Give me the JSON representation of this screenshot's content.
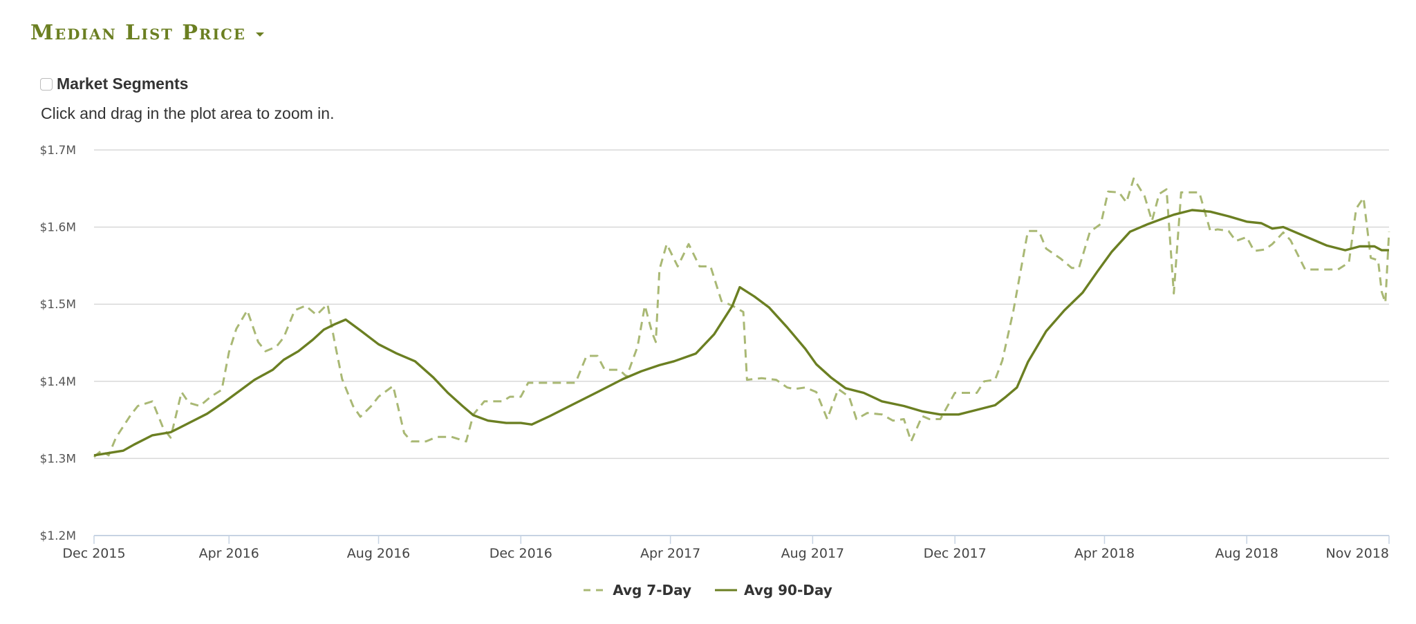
{
  "header": {
    "title": "Median List Price",
    "dropdown_icon": "caret-down-icon"
  },
  "controls": {
    "market_segments_label": "Market Segments",
    "market_segments_checked": false,
    "hint": "Click and drag in the plot area to zoom in."
  },
  "colors": {
    "accent": "#6b7f22",
    "series_7day": "#a9b874",
    "series_90day": "#6b7f22",
    "grid": "#d8d8d8",
    "axis": "#c6d3e3"
  },
  "legend": [
    {
      "label": "Avg 7-Day",
      "style": "dashed"
    },
    {
      "label": "Avg 90-Day",
      "style": "solid"
    }
  ],
  "chart_data": {
    "type": "line",
    "title": "Median List Price",
    "xlabel": "",
    "ylabel": "",
    "ylim": [
      1.2,
      1.7
    ],
    "y_ticks": [
      "$1.2M",
      "$1.3M",
      "$1.4M",
      "$1.5M",
      "$1.6M",
      "$1.7M"
    ],
    "y_tick_values": [
      1.2,
      1.3,
      1.4,
      1.5,
      1.6,
      1.7
    ],
    "x_ticks": [
      {
        "label": "Dec 2015",
        "month": 0
      },
      {
        "label": "Apr 2016",
        "month": 3.7
      },
      {
        "label": "Aug 2016",
        "month": 7.8
      },
      {
        "label": "Dec 2016",
        "month": 11.7
      },
      {
        "label": "Apr 2017",
        "month": 15.8
      },
      {
        "label": "Aug 2017",
        "month": 19.7
      },
      {
        "label": "Dec 2017",
        "month": 23.6
      },
      {
        "label": "Apr 2018",
        "month": 27.7
      },
      {
        "label": "Aug 2018",
        "month": 31.6
      },
      {
        "label": "Nov 2018",
        "month": 35.5
      }
    ],
    "xlim": [
      0,
      35.5
    ],
    "grid": true,
    "legend_position": "bottom",
    "series": [
      {
        "name": "Avg 7-Day",
        "dash": true,
        "points": [
          [
            0,
            1.302
          ],
          [
            0.2,
            1.31
          ],
          [
            0.4,
            1.304
          ],
          [
            0.6,
            1.327
          ],
          [
            1.0,
            1.356
          ],
          [
            1.2,
            1.368
          ],
          [
            1.6,
            1.374
          ],
          [
            1.9,
            1.339
          ],
          [
            2.1,
            1.327
          ],
          [
            2.4,
            1.386
          ],
          [
            2.6,
            1.372
          ],
          [
            2.9,
            1.368
          ],
          [
            3.2,
            1.38
          ],
          [
            3.5,
            1.389
          ],
          [
            3.7,
            1.438
          ],
          [
            3.9,
            1.468
          ],
          [
            4.2,
            1.492
          ],
          [
            4.5,
            1.451
          ],
          [
            4.7,
            1.439
          ],
          [
            5.0,
            1.445
          ],
          [
            5.2,
            1.457
          ],
          [
            5.5,
            1.492
          ],
          [
            5.8,
            1.498
          ],
          [
            6.1,
            1.486
          ],
          [
            6.4,
            1.5
          ],
          [
            6.6,
            1.45
          ],
          [
            6.8,
            1.403
          ],
          [
            7.1,
            1.368
          ],
          [
            7.3,
            1.354
          ],
          [
            7.6,
            1.368
          ],
          [
            7.8,
            1.38
          ],
          [
            8.2,
            1.394
          ],
          [
            8.5,
            1.333
          ],
          [
            8.7,
            1.322
          ],
          [
            9.1,
            1.322
          ],
          [
            9.4,
            1.328
          ],
          [
            9.8,
            1.328
          ],
          [
            10.2,
            1.322
          ],
          [
            10.4,
            1.357
          ],
          [
            10.7,
            1.374
          ],
          [
            11.2,
            1.374
          ],
          [
            11.4,
            1.38
          ],
          [
            11.7,
            1.38
          ],
          [
            11.9,
            1.398
          ],
          [
            12.2,
            1.398
          ],
          [
            12.5,
            1.398
          ],
          [
            12.9,
            1.398
          ],
          [
            13.2,
            1.398
          ],
          [
            13.5,
            1.433
          ],
          [
            13.8,
            1.433
          ],
          [
            14.0,
            1.415
          ],
          [
            14.4,
            1.415
          ],
          [
            14.6,
            1.406
          ],
          [
            14.9,
            1.445
          ],
          [
            15.1,
            1.498
          ],
          [
            15.3,
            1.463
          ],
          [
            15.4,
            1.451
          ],
          [
            15.5,
            1.545
          ],
          [
            15.7,
            1.578
          ],
          [
            16.0,
            1.549
          ],
          [
            16.3,
            1.578
          ],
          [
            16.6,
            1.549
          ],
          [
            16.9,
            1.549
          ],
          [
            17.2,
            1.504
          ],
          [
            17.5,
            1.498
          ],
          [
            17.8,
            1.49
          ],
          [
            17.9,
            1.402
          ],
          [
            18.3,
            1.404
          ],
          [
            18.7,
            1.402
          ],
          [
            19.0,
            1.392
          ],
          [
            19.2,
            1.39
          ],
          [
            19.5,
            1.392
          ],
          [
            19.8,
            1.386
          ],
          [
            20.1,
            1.351
          ],
          [
            20.4,
            1.39
          ],
          [
            20.7,
            1.38
          ],
          [
            20.9,
            1.351
          ],
          [
            21.2,
            1.359
          ],
          [
            21.6,
            1.357
          ],
          [
            21.9,
            1.349
          ],
          [
            22.2,
            1.351
          ],
          [
            22.4,
            1.322
          ],
          [
            22.7,
            1.355
          ],
          [
            22.9,
            1.351
          ],
          [
            23.2,
            1.351
          ],
          [
            23.6,
            1.385
          ],
          [
            23.8,
            1.385
          ],
          [
            24.2,
            1.385
          ],
          [
            24.4,
            1.4
          ],
          [
            24.7,
            1.402
          ],
          [
            24.9,
            1.427
          ],
          [
            25.2,
            1.491
          ],
          [
            25.6,
            1.595
          ],
          [
            25.9,
            1.595
          ],
          [
            26.1,
            1.572
          ],
          [
            26.5,
            1.559
          ],
          [
            26.8,
            1.547
          ],
          [
            27.0,
            1.547
          ],
          [
            27.3,
            1.594
          ],
          [
            27.6,
            1.604
          ],
          [
            27.8,
            1.646
          ],
          [
            28.1,
            1.645
          ],
          [
            28.3,
            1.632
          ],
          [
            28.5,
            1.663
          ],
          [
            28.8,
            1.64
          ],
          [
            29.0,
            1.608
          ],
          [
            29.2,
            1.643
          ],
          [
            29.4,
            1.649
          ],
          [
            29.6,
            1.514
          ],
          [
            29.8,
            1.645
          ],
          [
            30.1,
            1.645
          ],
          [
            30.3,
            1.645
          ],
          [
            30.6,
            1.595
          ],
          [
            30.8,
            1.597
          ],
          [
            31.1,
            1.595
          ],
          [
            31.3,
            1.582
          ],
          [
            31.6,
            1.587
          ],
          [
            31.8,
            1.569
          ],
          [
            32.1,
            1.571
          ],
          [
            32.3,
            1.578
          ],
          [
            32.6,
            1.593
          ],
          [
            32.8,
            1.583
          ],
          [
            33.2,
            1.545
          ],
          [
            33.6,
            1.545
          ],
          [
            34.1,
            1.545
          ],
          [
            34.4,
            1.554
          ],
          [
            34.6,
            1.624
          ],
          [
            34.8,
            1.638
          ],
          [
            35.0,
            1.56
          ],
          [
            35.2,
            1.557
          ],
          [
            35.3,
            1.516
          ],
          [
            35.4,
            1.502
          ],
          [
            35.5,
            1.594
          ]
        ]
      },
      {
        "name": "Avg 90-Day",
        "dash": false,
        "points": [
          [
            0,
            1.304
          ],
          [
            0.8,
            1.31
          ],
          [
            1.1,
            1.318
          ],
          [
            1.6,
            1.33
          ],
          [
            2.1,
            1.334
          ],
          [
            2.6,
            1.346
          ],
          [
            3.1,
            1.358
          ],
          [
            3.6,
            1.374
          ],
          [
            4.0,
            1.388
          ],
          [
            4.4,
            1.402
          ],
          [
            4.9,
            1.415
          ],
          [
            5.2,
            1.428
          ],
          [
            5.6,
            1.439
          ],
          [
            6.0,
            1.454
          ],
          [
            6.3,
            1.467
          ],
          [
            6.6,
            1.474
          ],
          [
            6.9,
            1.48
          ],
          [
            7.3,
            1.466
          ],
          [
            7.8,
            1.448
          ],
          [
            8.3,
            1.436
          ],
          [
            8.8,
            1.426
          ],
          [
            9.3,
            1.405
          ],
          [
            9.7,
            1.385
          ],
          [
            10.1,
            1.368
          ],
          [
            10.4,
            1.356
          ],
          [
            10.8,
            1.349
          ],
          [
            11.3,
            1.346
          ],
          [
            11.7,
            1.346
          ],
          [
            12.0,
            1.344
          ],
          [
            12.5,
            1.355
          ],
          [
            13.0,
            1.367
          ],
          [
            13.8,
            1.386
          ],
          [
            14.5,
            1.403
          ],
          [
            15.0,
            1.413
          ],
          [
            15.5,
            1.421
          ],
          [
            15.9,
            1.426
          ],
          [
            16.5,
            1.436
          ],
          [
            17.0,
            1.461
          ],
          [
            17.5,
            1.498
          ],
          [
            17.7,
            1.522
          ],
          [
            18.1,
            1.51
          ],
          [
            18.5,
            1.496
          ],
          [
            19.0,
            1.47
          ],
          [
            19.5,
            1.442
          ],
          [
            19.8,
            1.422
          ],
          [
            20.2,
            1.405
          ],
          [
            20.6,
            1.391
          ],
          [
            21.1,
            1.385
          ],
          [
            21.6,
            1.374
          ],
          [
            22.2,
            1.368
          ],
          [
            22.7,
            1.361
          ],
          [
            23.2,
            1.357
          ],
          [
            23.7,
            1.357
          ],
          [
            24.2,
            1.363
          ],
          [
            24.7,
            1.369
          ],
          [
            25.0,
            1.38
          ],
          [
            25.3,
            1.392
          ],
          [
            25.6,
            1.425
          ],
          [
            26.1,
            1.465
          ],
          [
            26.6,
            1.492
          ],
          [
            27.1,
            1.515
          ],
          [
            27.5,
            1.542
          ],
          [
            27.9,
            1.568
          ],
          [
            28.4,
            1.594
          ],
          [
            28.9,
            1.604
          ],
          [
            29.3,
            1.611
          ],
          [
            29.6,
            1.616
          ],
          [
            30.1,
            1.622
          ],
          [
            30.6,
            1.62
          ],
          [
            31.1,
            1.614
          ],
          [
            31.6,
            1.607
          ],
          [
            32.0,
            1.605
          ],
          [
            32.3,
            1.598
          ],
          [
            32.6,
            1.6
          ],
          [
            33.1,
            1.59
          ],
          [
            33.8,
            1.576
          ],
          [
            34.3,
            1.57
          ],
          [
            34.7,
            1.575
          ],
          [
            35.1,
            1.575
          ],
          [
            35.3,
            1.57
          ],
          [
            35.5,
            1.57
          ]
        ]
      }
    ]
  }
}
